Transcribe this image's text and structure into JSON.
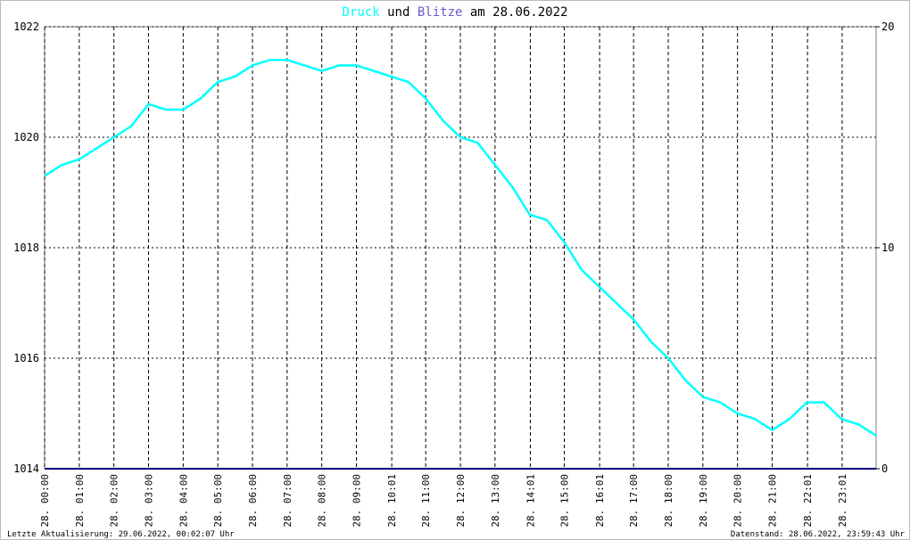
{
  "chart_data": {
    "type": "line",
    "title_connector": "und",
    "title_date": "am 28.06.2022",
    "footer_left": "Letzte Aktualisierung: 29.06.2022, 00:02:07 Uhr",
    "footer_right": "Datenstand: 28.06.2022, 23:59:43 Uhr",
    "xlim": [
      0,
      24
    ],
    "xticks": [
      {
        "value": 0,
        "label": "28. 00:00"
      },
      {
        "value": 1,
        "label": "28. 01:00"
      },
      {
        "value": 2,
        "label": "28. 02:00"
      },
      {
        "value": 3,
        "label": "28. 03:00"
      },
      {
        "value": 4,
        "label": "28. 04:00"
      },
      {
        "value": 5,
        "label": "28. 05:00"
      },
      {
        "value": 6,
        "label": "28. 06:00"
      },
      {
        "value": 7,
        "label": "28. 07:00"
      },
      {
        "value": 8,
        "label": "28. 08:00"
      },
      {
        "value": 9,
        "label": "28. 09:00"
      },
      {
        "value": 10.02,
        "label": "28. 10:01"
      },
      {
        "value": 11,
        "label": "28. 11:00"
      },
      {
        "value": 12,
        "label": "28. 12:00"
      },
      {
        "value": 13,
        "label": "28. 13:00"
      },
      {
        "value": 14.02,
        "label": "28. 14:01"
      },
      {
        "value": 15,
        "label": "28. 15:00"
      },
      {
        "value": 16.02,
        "label": "28. 16:01"
      },
      {
        "value": 17,
        "label": "28. 17:00"
      },
      {
        "value": 18,
        "label": "28. 18:00"
      },
      {
        "value": 19,
        "label": "28. 19:00"
      },
      {
        "value": 20,
        "label": "28. 20:00"
      },
      {
        "value": 21,
        "label": "28. 21:00"
      },
      {
        "value": 22.02,
        "label": "28. 22:01"
      },
      {
        "value": 23.02,
        "label": "28. 23:01"
      }
    ],
    "ylim": [
      1014,
      1022
    ],
    "yticks": [
      1014,
      1016,
      1018,
      1020,
      1022
    ],
    "y2lim": [
      0,
      20
    ],
    "y2ticks": [
      0,
      10,
      20
    ],
    "grid": true,
    "series": [
      {
        "name": "Druck",
        "color": "#00ffff",
        "x": [
          0,
          0.5,
          1,
          1.5,
          2,
          2.5,
          3,
          3.5,
          4,
          4.5,
          5,
          5.5,
          6,
          6.5,
          7,
          7.5,
          8,
          8.5,
          9,
          9.5,
          10,
          10.5,
          11,
          11.5,
          12,
          12.5,
          13,
          13.5,
          14,
          14.5,
          15,
          15.5,
          16,
          16.5,
          17,
          17.5,
          18,
          18.5,
          19,
          19.5,
          20,
          20.5,
          21,
          21.5,
          22,
          22.5,
          23,
          23.5,
          24
        ],
        "values": [
          1019.3,
          1019.5,
          1019.6,
          1019.8,
          1020.0,
          1020.2,
          1020.6,
          1020.5,
          1020.5,
          1020.7,
          1021.0,
          1021.1,
          1021.3,
          1021.4,
          1021.4,
          1021.3,
          1021.2,
          1021.3,
          1021.3,
          1021.2,
          1021.1,
          1021.0,
          1020.7,
          1020.3,
          1020.0,
          1019.9,
          1019.5,
          1019.1,
          1018.6,
          1018.5,
          1018.1,
          1017.6,
          1017.3,
          1017.0,
          1016.7,
          1016.3,
          1016.0,
          1015.6,
          1015.3,
          1015.2,
          1015.0,
          1014.9,
          1014.7,
          1014.9,
          1015.2,
          1015.2,
          1014.9,
          1014.8,
          1014.6
        ]
      },
      {
        "name": "Blitze",
        "color": "#6a5acd",
        "line_color": "#000080",
        "axis": "y2",
        "x": [
          0,
          24
        ],
        "values": [
          0,
          0
        ]
      }
    ]
  }
}
